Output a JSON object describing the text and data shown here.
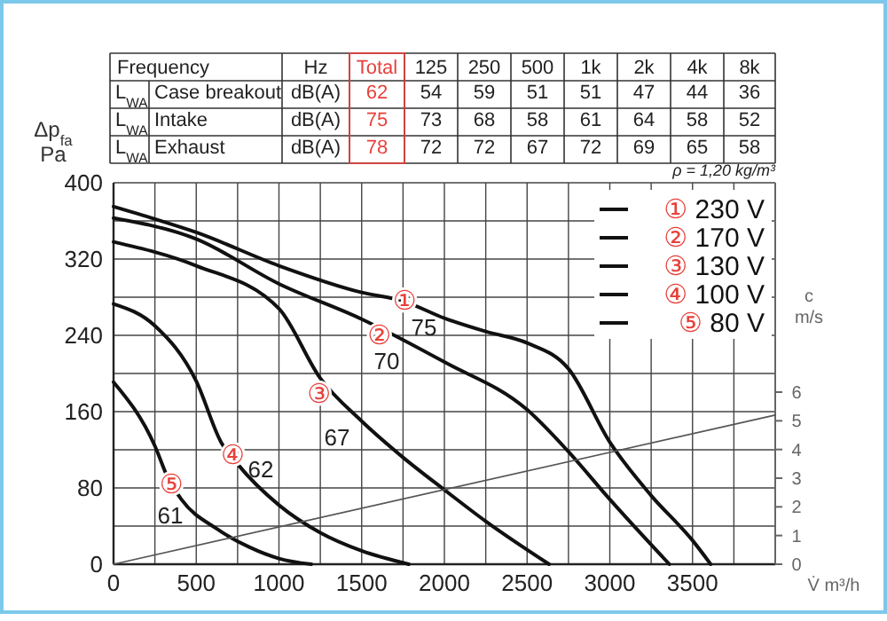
{
  "chart_data": [
    {
      "type": "heatmap",
      "annotations": [
        "Frequency",
        "Hz"
      ],
      "categories": [
        "Total",
        "125",
        "250",
        "500",
        "1k",
        "2k",
        "4k",
        "8k"
      ],
      "ylabel": "L$_{WA}$",
      "y_categories": [
        "Case breakout",
        "Intake",
        "Exhaust"
      ],
      "y2_categories": [
        "dB(A)",
        "dB(A)",
        "dB(A)"
      ],
      "data_labels": true,
      "cells": [
        [
          62,
          54,
          59,
          51,
          51,
          47,
          44,
          36
        ],
        [
          75,
          73,
          68,
          58,
          61,
          64,
          58,
          52
        ],
        [
          78,
          72,
          72,
          67,
          72,
          69,
          65,
          58
        ]
      ]
    },
    {
      "type": "line",
      "xlabel": "V̇ m³/h",
      "ylabel": "Δp$_{fa}$\nPa",
      "y2label": "c\nm/s",
      "grid": true,
      "legend": "top right",
      "xlim": [
        0,
        4000
      ],
      "xticks": [
        0,
        {
          "value": 250,
          "label": null
        },
        500,
        {
          "value": 750,
          "label": null
        },
        1000,
        {
          "value": 1250,
          "label": null
        },
        1500,
        {
          "value": 1750,
          "label": null
        },
        2000,
        {
          "value": 2250,
          "label": null
        },
        2500,
        {
          "value": 2750,
          "label": null
        },
        3000,
        {
          "value": 3250,
          "label": null
        },
        3500,
        {
          "value": 3750,
          "label": null
        },
        {
          "value": 4000,
          "label": null
        }
      ],
      "ylim": [
        0,
        400
      ],
      "yticks": [
        0,
        {
          "value": 40,
          "label": null
        },
        80,
        {
          "value": 120,
          "label": null
        },
        160,
        {
          "value": 200,
          "label": null
        },
        240,
        {
          "value": 280,
          "label": null
        },
        320,
        {
          "value": 360,
          "label": null
        },
        400
      ],
      "y2lim": [
        0,
        13.3
      ],
      "y2ticks": [
        0,
        1,
        2,
        3,
        4,
        5,
        6
      ],
      "series": [
        {
          "name": "① 230 V",
          "color": "#111111",
          "x": [
            0,
            250,
            500,
            1000,
            1500,
            1750,
            2000,
            2250,
            2500,
            2750,
            3000,
            3250,
            3500,
            3610
          ],
          "values": [
            375,
            362,
            348,
            313,
            285,
            276,
            258,
            244,
            232,
            205,
            128,
            72,
            25,
            0
          ]
        },
        {
          "name": "② 170 V",
          "color": "#111111",
          "x": [
            0,
            500,
            1000,
            1500,
            2000,
            2500,
            2750,
            3000,
            3360
          ],
          "values": [
            363,
            341,
            294,
            257,
            212,
            162,
            118,
            68,
            0
          ]
        },
        {
          "name": "③ 130 V",
          "color": "#111111",
          "x": [
            0,
            500,
            1000,
            1250,
            1500,
            1750,
            2000,
            2250,
            2633
          ],
          "values": [
            338,
            313,
            268,
            195,
            150,
            112,
            78,
            45,
            0
          ]
        },
        {
          "name": "④ 100 V",
          "color": "#111111",
          "x": [
            0,
            250,
            500,
            650,
            750,
            1000,
            1250,
            1500,
            1785
          ],
          "values": [
            273,
            250,
            192,
            128,
            105,
            62,
            33,
            14,
            0
          ]
        },
        {
          "name": "⑤ 80 V",
          "color": "#111111",
          "x": [
            0,
            250,
            330,
            410,
            625,
            820,
            1000,
            1196
          ],
          "values": [
            191,
            124,
            90,
            68,
            37,
            18,
            6,
            0
          ]
        },
        {
          "color": "#555555",
          "axis": "y2",
          "x": [
            0,
            4000
          ],
          "values": [
            0,
            5.2
          ]
        }
      ],
      "annotations": [
        "ρ = 1,20 kg/m³",
        {
          "text": "①",
          "x": 1760,
          "y": 276
        },
        "75",
        {
          "text": "②",
          "x": 1607,
          "y": 240
        },
        "70",
        {
          "text": "③",
          "x": 1243,
          "y": 179
        },
        "67",
        {
          "text": "④",
          "x": 721,
          "y": 114
        },
        "62",
        {
          "text": "⑤",
          "x": 350,
          "y": 84
        },
        "61"
      ]
    }
  ]
}
